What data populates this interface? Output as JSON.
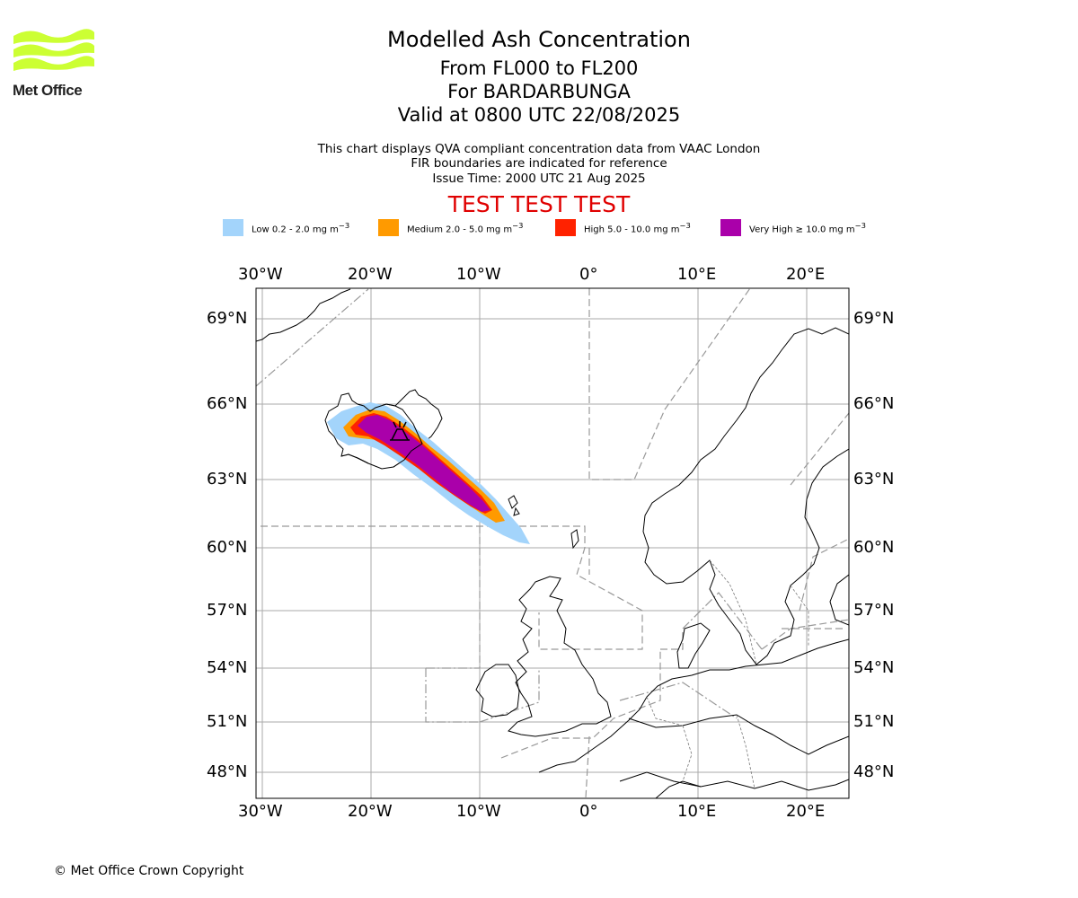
{
  "logo": {
    "text": "Met Office",
    "color": "#ccff33"
  },
  "header": {
    "title": "Modelled Ash Concentration",
    "level": "From FL000 to FL200",
    "volcano": "For BARDARBUNGA",
    "valid": "Valid at 0800 UTC 22/08/2025",
    "note1": "This chart displays QVA compliant concentration data from VAAC London",
    "note2": "FIR boundaries are indicated for reference",
    "issue": "Issue Time: 2000 UTC 21 Aug 2025",
    "banner": "TEST TEST TEST"
  },
  "legend": [
    {
      "label": "Low 0.2 - 2.0 mg m",
      "sup": "−3",
      "color": "#a3d4fb"
    },
    {
      "label": "Medium 2.0 - 5.0 mg m",
      "sup": "−3",
      "color": "#ff9a00"
    },
    {
      "label": "High 5.0 - 10.0 mg m",
      "sup": "−3",
      "color": "#ff2200"
    },
    {
      "label": "Very High ≥ 10.0 mg m",
      "sup": "−3",
      "color": "#aa00aa"
    }
  ],
  "axes": {
    "lon_labels": [
      "30°W",
      "20°W",
      "10°W",
      "0°",
      "10°E",
      "20°E"
    ],
    "lat_labels": [
      "69°N",
      "66°N",
      "63°N",
      "60°N",
      "57°N",
      "54°N",
      "51°N",
      "48°N"
    ]
  },
  "map": {
    "icon": "volcano-icon"
  },
  "footer": {
    "copyright": "© Met Office Crown Copyright"
  }
}
